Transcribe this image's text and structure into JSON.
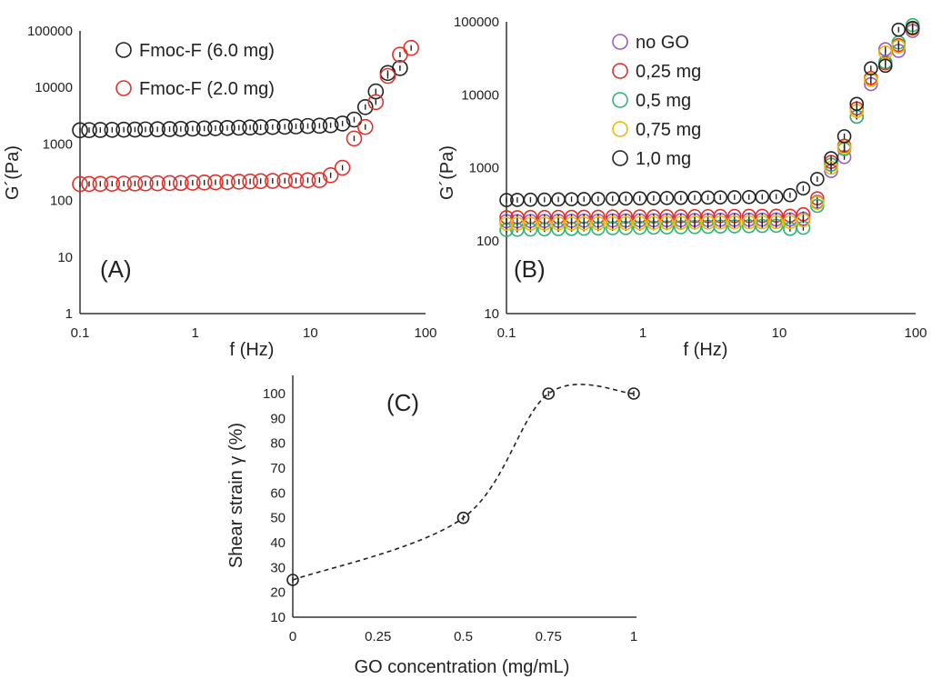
{
  "chart_data": [
    {
      "panel": "(A)",
      "type": "scatter",
      "xscale": "log",
      "yscale": "log",
      "xlabel": "f (Hz)",
      "ylabel": "G´(Pa)",
      "xlim": [
        0.1,
        100
      ],
      "ylim": [
        1,
        100000
      ],
      "xticks": [
        "0.1",
        "1",
        "10",
        "100"
      ],
      "yticks": [
        "1",
        "10",
        "100",
        "1000",
        "10000",
        "100000"
      ],
      "legend_position": "top-left",
      "series": [
        {
          "name": "Fmoc-F (6.0 mg)",
          "color": "#222222",
          "x": [
            0.1,
            0.12,
            0.15,
            0.19,
            0.24,
            0.3,
            0.37,
            0.47,
            0.6,
            0.75,
            0.95,
            1.2,
            1.5,
            1.9,
            2.4,
            3,
            3.7,
            4.7,
            6,
            7.5,
            9.5,
            12,
            15,
            19,
            24,
            30,
            37,
            47,
            60
          ],
          "y": [
            1750,
            1760,
            1770,
            1780,
            1790,
            1800,
            1810,
            1820,
            1830,
            1850,
            1870,
            1880,
            1900,
            1920,
            1940,
            1960,
            1980,
            2000,
            2020,
            2050,
            2080,
            2100,
            2150,
            2300,
            2700,
            4500,
            8500,
            18000,
            22000
          ]
        },
        {
          "name": "Fmoc-F (2.0 mg)",
          "color": "#e0302a",
          "x": [
            0.1,
            0.12,
            0.15,
            0.19,
            0.24,
            0.3,
            0.37,
            0.47,
            0.6,
            0.75,
            0.95,
            1.2,
            1.5,
            1.9,
            2.4,
            3,
            3.7,
            4.7,
            6,
            7.5,
            9.5,
            12,
            15,
            19,
            24,
            30,
            37,
            47,
            60,
            75
          ],
          "y": [
            195,
            196,
            197,
            198,
            199,
            200,
            201,
            202,
            203,
            204,
            206,
            208,
            210,
            212,
            215,
            217,
            220,
            222,
            224,
            226,
            228,
            230,
            280,
            380,
            1250,
            2000,
            5500,
            16000,
            38000,
            50000
          ]
        }
      ]
    },
    {
      "panel": "(B)",
      "type": "scatter",
      "xscale": "log",
      "yscale": "log",
      "xlabel": "f (Hz)",
      "ylabel": "G´(Pa)",
      "xlim": [
        0.1,
        100
      ],
      "ylim": [
        10,
        100000
      ],
      "xticks": [
        "0.1",
        "1",
        "10",
        "100"
      ],
      "yticks": [
        "10",
        "100",
        "1000",
        "10000",
        "100000"
      ],
      "legend_position": "top-left",
      "series": [
        {
          "name": "no GO",
          "color": "#9b59c8",
          "x": [
            0.1,
            0.12,
            0.15,
            0.19,
            0.24,
            0.3,
            0.37,
            0.47,
            0.6,
            0.75,
            0.95,
            1.2,
            1.5,
            1.9,
            2.4,
            3,
            3.7,
            4.7,
            6,
            7.5,
            9.5,
            12,
            15,
            19,
            24,
            30,
            37,
            47,
            60,
            75,
            95
          ],
          "y": [
            185,
            185,
            186,
            186,
            187,
            187,
            188,
            188,
            189,
            189,
            190,
            190,
            191,
            191,
            192,
            192,
            193,
            193,
            194,
            194,
            195,
            195,
            200,
            340,
            900,
            1400,
            5000,
            14000,
            42000,
            40000,
            75000
          ]
        },
        {
          "name": "0,25 mg",
          "color": "#e0302a",
          "x": [
            0.1,
            0.12,
            0.15,
            0.19,
            0.24,
            0.3,
            0.37,
            0.47,
            0.6,
            0.75,
            0.95,
            1.2,
            1.5,
            1.9,
            2.4,
            3,
            3.7,
            4.7,
            6,
            7.5,
            9.5,
            12,
            15,
            19,
            24,
            30,
            37,
            47,
            60,
            75,
            95
          ],
          "y": [
            210,
            210,
            211,
            211,
            212,
            212,
            213,
            213,
            214,
            214,
            215,
            215,
            216,
            216,
            217,
            217,
            218,
            218,
            219,
            219,
            220,
            220,
            230,
            380,
            1200,
            2000,
            6500,
            17000,
            27000,
            48000,
            83000
          ]
        },
        {
          "name": "0,5 mg",
          "color": "#2bb673",
          "x": [
            0.1,
            0.12,
            0.15,
            0.19,
            0.24,
            0.3,
            0.37,
            0.47,
            0.6,
            0.75,
            0.95,
            1.2,
            1.5,
            1.9,
            2.4,
            3,
            3.7,
            4.7,
            6,
            7.5,
            9.5,
            12,
            15,
            19,
            24,
            30,
            37,
            47,
            60,
            75,
            95
          ],
          "y": [
            140,
            141,
            142,
            143,
            144,
            145,
            146,
            147,
            148,
            149,
            150,
            151,
            152,
            153,
            154,
            155,
            156,
            157,
            158,
            159,
            160,
            145,
            150,
            300,
            1100,
            1800,
            5000,
            16000,
            28000,
            52000,
            90000
          ]
        },
        {
          "name": "0,75 mg",
          "color": "#f0b800",
          "x": [
            0.1,
            0.12,
            0.15,
            0.19,
            0.24,
            0.3,
            0.37,
            0.47,
            0.6,
            0.75,
            0.95,
            1.2,
            1.5,
            1.9,
            2.4,
            3,
            3.7,
            4.7,
            6,
            7.5,
            9.5,
            12,
            15,
            19,
            24,
            30,
            37,
            47,
            60,
            75,
            95
          ],
          "y": [
            170,
            170,
            171,
            171,
            172,
            172,
            173,
            173,
            174,
            174,
            175,
            175,
            176,
            176,
            177,
            177,
            178,
            178,
            179,
            179,
            180,
            180,
            190,
            330,
            1000,
            1900,
            6000,
            16000,
            38000,
            46000,
            80000
          ]
        },
        {
          "name": "1,0 mg",
          "color": "#222222",
          "x": [
            0.1,
            0.12,
            0.15,
            0.19,
            0.24,
            0.3,
            0.37,
            0.47,
            0.6,
            0.75,
            0.95,
            1.2,
            1.5,
            1.9,
            2.4,
            3,
            3.7,
            4.7,
            6,
            7.5,
            9.5,
            12,
            15,
            19,
            24,
            30,
            37,
            47,
            60,
            75,
            95
          ],
          "y": [
            360,
            362,
            364,
            366,
            368,
            370,
            372,
            374,
            376,
            378,
            380,
            382,
            384,
            386,
            388,
            390,
            392,
            394,
            396,
            398,
            400,
            420,
            520,
            700,
            1350,
            2700,
            7500,
            23000,
            25000,
            78000,
            82000
          ]
        }
      ]
    },
    {
      "panel": "(C)",
      "type": "line",
      "xscale": "linear",
      "yscale": "linear",
      "xlabel": "GO concentration (mg/mL)",
      "ylabel": "Shear strain γ (%)",
      "xlim": [
        0,
        1
      ],
      "ylim": [
        10,
        100
      ],
      "xticks": [
        "0",
        "0.25",
        "0.5",
        "0.75",
        "1"
      ],
      "yticks": [
        "10",
        "20",
        "30",
        "40",
        "50",
        "60",
        "70",
        "80",
        "90",
        "100"
      ],
      "x": [
        0,
        0.5,
        0.75,
        1
      ],
      "y": [
        25,
        50,
        100,
        100
      ],
      "line_style": "dashed",
      "color": "#222222"
    }
  ]
}
